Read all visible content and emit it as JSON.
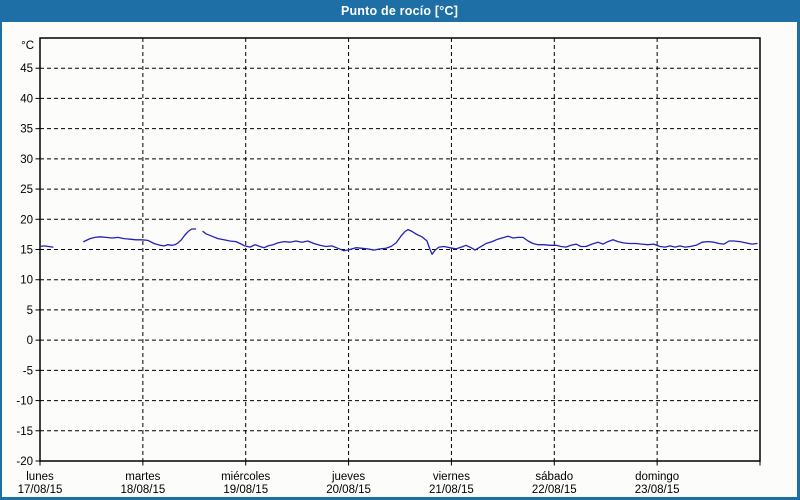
{
  "window": {
    "title": "Punto de rocío [°C]"
  },
  "colors": {
    "accent": "#1d6fa5",
    "title_text": "#ffffff",
    "background": "#fcfdfa",
    "grid": "#000000",
    "frame": "#000000",
    "line": "#2222bb",
    "label_text": "#000000"
  },
  "chart_data": {
    "type": "line",
    "title": "Punto de rocío [°C]",
    "ylabel": "°C",
    "xlabel": "",
    "ylim": [
      -20,
      50
    ],
    "y_ticks": [
      45,
      40,
      35,
      30,
      25,
      20,
      15,
      10,
      5,
      0,
      -5,
      -10,
      -15,
      -20
    ],
    "grid": "dashed-on",
    "legend": "none",
    "x_unit": "hours",
    "x_range_hours": [
      0,
      168
    ],
    "x_days": [
      {
        "name": "lunes",
        "date": "17/08/15"
      },
      {
        "name": "martes",
        "date": "18/08/15"
      },
      {
        "name": "miércoles",
        "date": "19/08/15"
      },
      {
        "name": "jueves",
        "date": "20/08/15"
      },
      {
        "name": "viernes",
        "date": "21/08/15"
      },
      {
        "name": "sábado",
        "date": "22/08/15"
      },
      {
        "name": "domingo",
        "date": "23/08/15"
      }
    ],
    "series": [
      {
        "name": "Punto de rocío",
        "unit": "°C",
        "color": "#2222bb",
        "segments": [
          [
            [
              0,
              15.5
            ],
            [
              1.0,
              15.6
            ],
            [
              2.0,
              15.5
            ],
            [
              3.0,
              15.4
            ]
          ],
          [
            [
              10.2,
              16.3
            ],
            [
              11.7,
              16.8
            ],
            [
              12.8,
              17.0
            ],
            [
              14.0,
              17.1
            ],
            [
              15.4,
              17.0
            ],
            [
              16.8,
              16.9
            ],
            [
              18.2,
              17.0
            ],
            [
              19.6,
              16.8
            ],
            [
              21.0,
              16.7
            ],
            [
              22.4,
              16.6
            ],
            [
              23.8,
              16.6
            ],
            [
              25.2,
              16.5
            ],
            [
              26.6,
              16.0
            ],
            [
              28.0,
              15.7
            ],
            [
              29.0,
              15.6
            ],
            [
              29.8,
              15.8
            ],
            [
              30.8,
              15.7
            ],
            [
              31.5,
              15.8
            ],
            [
              32.2,
              16.1
            ],
            [
              33.0,
              16.6
            ],
            [
              33.8,
              17.4
            ],
            [
              34.6,
              18.0
            ],
            [
              35.4,
              18.4
            ],
            [
              36.3,
              18.4
            ]
          ],
          [
            [
              38.0,
              18.0
            ],
            [
              38.7,
              17.6
            ],
            [
              40.1,
              17.2
            ],
            [
              41.5,
              16.8
            ],
            [
              42.9,
              16.6
            ],
            [
              44.3,
              16.4
            ],
            [
              45.7,
              16.3
            ],
            [
              46.7,
              16.0
            ],
            [
              47.8,
              15.6
            ],
            [
              49.0,
              15.4
            ],
            [
              50.2,
              15.8
            ],
            [
              51.3,
              15.5
            ],
            [
              52.3,
              15.3
            ],
            [
              53.2,
              15.6
            ],
            [
              54.4,
              15.8
            ],
            [
              55.5,
              16.1
            ],
            [
              56.9,
              16.3
            ],
            [
              58.3,
              16.2
            ],
            [
              59.7,
              16.4
            ],
            [
              61.1,
              16.2
            ],
            [
              62.5,
              16.4
            ],
            [
              63.9,
              16.0
            ],
            [
              65.3,
              15.7
            ],
            [
              66.7,
              15.5
            ],
            [
              68.1,
              15.6
            ],
            [
              69.5,
              15.2
            ],
            [
              70.9,
              14.8
            ],
            [
              72.3,
              15.0
            ],
            [
              73.7,
              15.3
            ],
            [
              75.1,
              15.2
            ],
            [
              76.5,
              15.1
            ],
            [
              77.9,
              14.9
            ],
            [
              79.3,
              15.1
            ],
            [
              80.7,
              15.2
            ],
            [
              81.9,
              15.5
            ],
            [
              83.1,
              16.1
            ],
            [
              84.2,
              17.2
            ],
            [
              85.2,
              18.0
            ],
            [
              85.9,
              18.3
            ],
            [
              86.8,
              18.0
            ],
            [
              87.9,
              17.5
            ],
            [
              89.1,
              17.1
            ],
            [
              90.3,
              16.4
            ],
            [
              91.0,
              15.0
            ],
            [
              91.5,
              14.2
            ],
            [
              92.2,
              14.9
            ],
            [
              93.1,
              15.4
            ],
            [
              94.3,
              15.5
            ],
            [
              95.7,
              15.3
            ],
            [
              97.1,
              15.1
            ],
            [
              98.3,
              15.4
            ],
            [
              99.4,
              15.7
            ],
            [
              100.6,
              15.3
            ],
            [
              101.5,
              14.9
            ],
            [
              102.7,
              15.4
            ],
            [
              104.1,
              16.0
            ],
            [
              105.5,
              16.3
            ],
            [
              106.8,
              16.7
            ],
            [
              108.3,
              17.0
            ],
            [
              109.2,
              17.2
            ],
            [
              110.4,
              16.9
            ],
            [
              111.5,
              17.0
            ],
            [
              112.7,
              17.0
            ],
            [
              113.9,
              16.4
            ],
            [
              115.0,
              16.0
            ],
            [
              116.2,
              15.8
            ],
            [
              117.6,
              15.8
            ],
            [
              119.0,
              15.7
            ],
            [
              120.4,
              15.7
            ],
            [
              121.6,
              15.5
            ],
            [
              122.7,
              15.4
            ],
            [
              123.9,
              15.7
            ],
            [
              125.1,
              15.9
            ],
            [
              126.2,
              15.5
            ],
            [
              127.4,
              15.5
            ],
            [
              128.8,
              15.9
            ],
            [
              130.2,
              16.2
            ],
            [
              131.4,
              15.9
            ],
            [
              132.5,
              16.3
            ],
            [
              133.7,
              16.6
            ],
            [
              134.9,
              16.3
            ],
            [
              136.1,
              16.1
            ],
            [
              137.5,
              16.0
            ],
            [
              139.0,
              16.0
            ],
            [
              140.4,
              15.9
            ],
            [
              141.8,
              15.8
            ],
            [
              143.2,
              15.9
            ],
            [
              144.7,
              15.5
            ],
            [
              145.8,
              15.4
            ],
            [
              147.0,
              15.6
            ],
            [
              148.2,
              15.4
            ],
            [
              149.3,
              15.6
            ],
            [
              150.5,
              15.4
            ],
            [
              151.7,
              15.5
            ],
            [
              153.1,
              15.7
            ],
            [
              154.5,
              16.2
            ],
            [
              155.9,
              16.3
            ],
            [
              157.3,
              16.2
            ],
            [
              158.4,
              16.0
            ],
            [
              159.6,
              15.9
            ],
            [
              160.8,
              16.4
            ],
            [
              161.9,
              16.4
            ],
            [
              163.3,
              16.3
            ],
            [
              164.7,
              16.1
            ],
            [
              166.1,
              15.9
            ],
            [
              167.3,
              16.0
            ]
          ]
        ]
      }
    ]
  }
}
